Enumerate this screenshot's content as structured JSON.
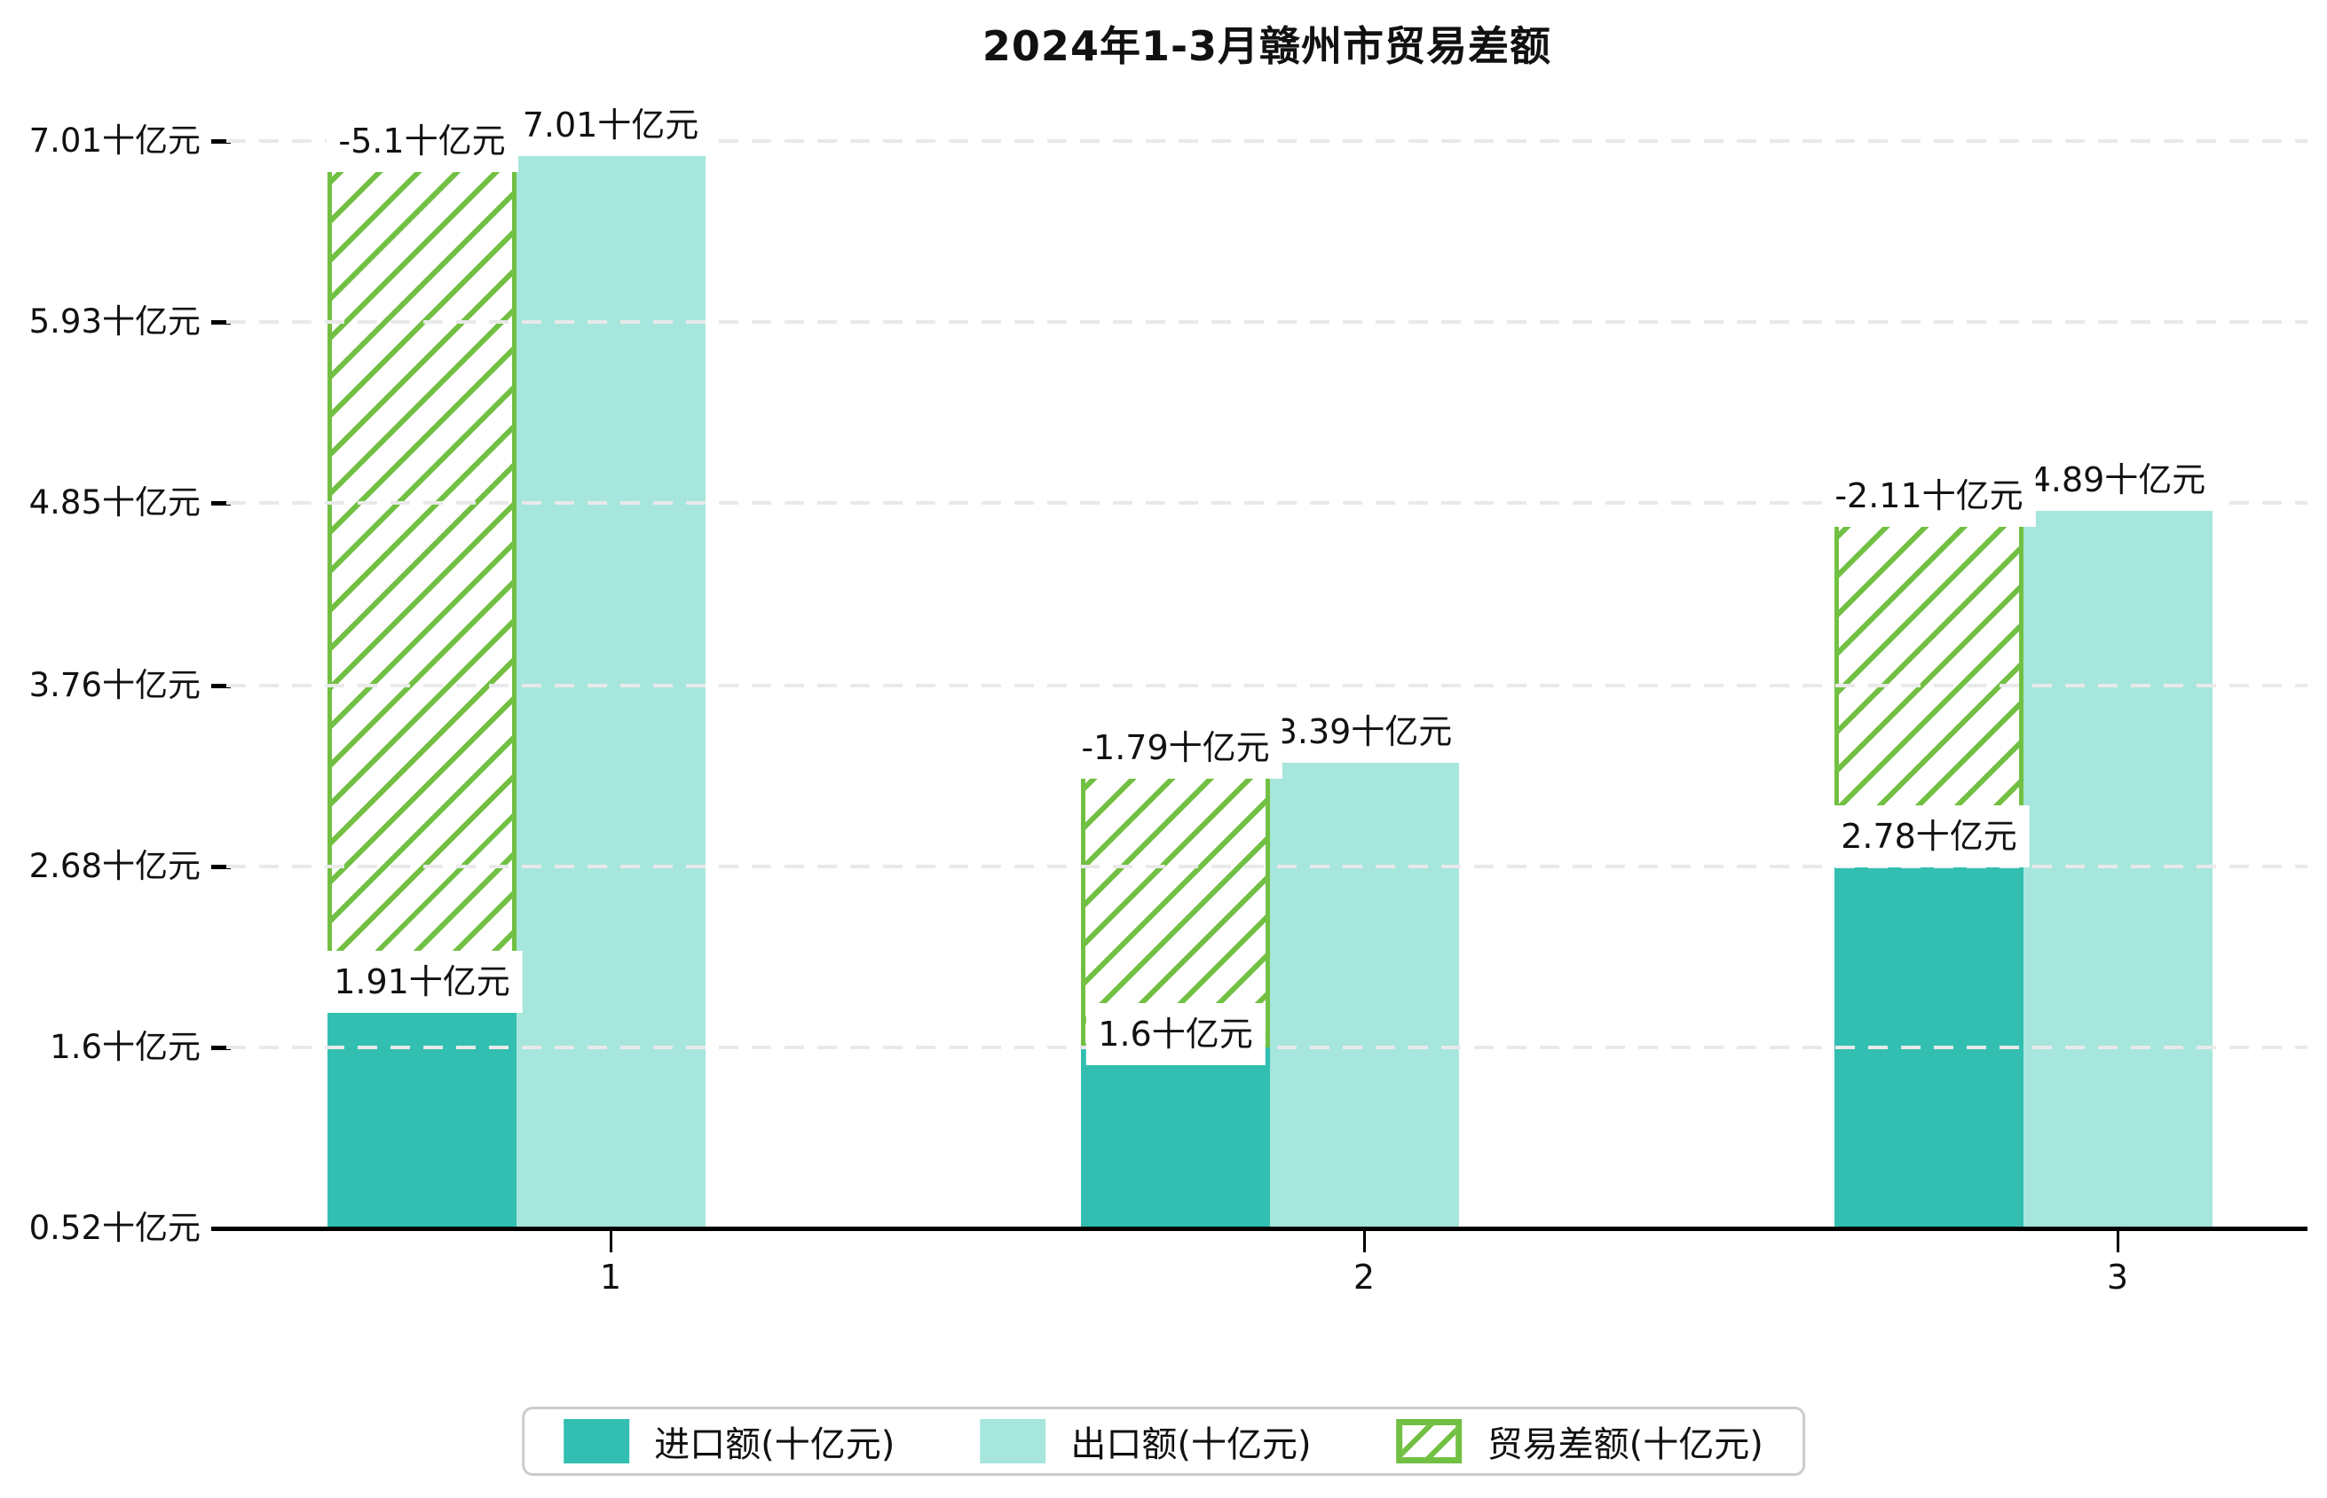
{
  "title": "2024年1-3月赣州市贸易差额",
  "colors": {
    "import_bar": "#32bfb1",
    "export_bar": "#a7e6dd",
    "balance_hatch": "#72c043",
    "gridline": "#e9e9e9",
    "axis": "#000000",
    "label_background": "#ffffff",
    "legend_border": "#cccccc",
    "text": "#111111"
  },
  "unit": "十亿元",
  "y_axis": {
    "tick_labels": [
      "0.52十亿元",
      "1.6十亿元",
      "2.68十亿元",
      "3.76十亿元",
      "4.85十亿元",
      "5.93十亿元",
      "7.01十亿元"
    ],
    "tick_values": [
      0.52,
      1.6,
      2.68,
      3.76,
      4.85,
      5.93,
      7.01
    ]
  },
  "x_axis": {
    "tick_labels": [
      "1",
      "2",
      "3"
    ]
  },
  "bar_value_labels": {
    "import": [
      "1.91十亿元",
      "1.6十亿元",
      "2.78十亿元"
    ],
    "export": [
      "7.01十亿元",
      "3.39十亿元",
      "4.89十亿元"
    ],
    "balance": [
      "-5.1十亿元",
      "-1.79十亿元",
      "-2.11十亿元"
    ]
  },
  "legend": {
    "items": [
      {
        "label": "进口额(十亿元)",
        "swatch": "import-solid-teal"
      },
      {
        "label": "出口额(十亿元)",
        "swatch": "export-solid-light-teal"
      },
      {
        "label": "贸易差额(十亿元)",
        "swatch": "balance-green-hatched"
      }
    ]
  },
  "chart_data": {
    "type": "bar",
    "title": "2024年1-3月赣州市贸易差额",
    "categories": [
      1,
      2,
      3
    ],
    "series": [
      {
        "name": "进口额(十亿元)",
        "values": [
          1.91,
          1.6,
          2.78
        ]
      },
      {
        "name": "出口额(十亿元)",
        "values": [
          7.01,
          3.39,
          4.89
        ]
      },
      {
        "name": "贸易差额(十亿元)",
        "values": [
          -5.1,
          -1.79,
          -2.11
        ]
      }
    ],
    "unit": "十亿元",
    "xlabel": "",
    "ylabel": "",
    "ylim": [
      0.52,
      7.01
    ],
    "y_ticks": [
      0.52,
      1.6,
      2.68,
      3.76,
      4.85,
      5.93,
      7.01
    ],
    "grid": true,
    "grid_style": "dashed",
    "legend_position": "bottom",
    "notes": "贸易差额 bars are hatched rectangles spanning from the import value up to the export value for each month; balance = import - export"
  }
}
